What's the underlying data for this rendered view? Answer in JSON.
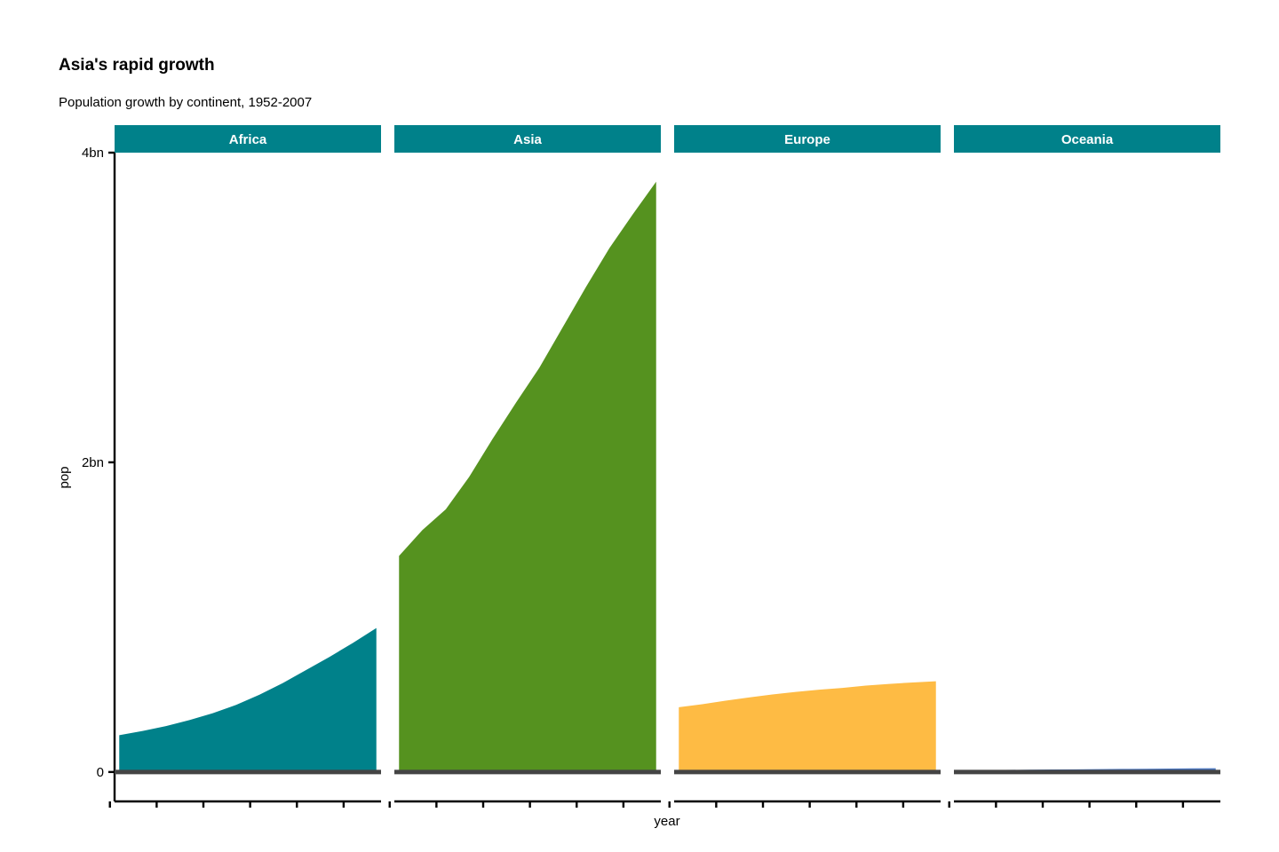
{
  "chart_data": {
    "type": "area",
    "title": "Asia's rapid growth",
    "subtitle": "Population growth by continent, 1952-2007",
    "xlabel": "year",
    "ylabel": "pop",
    "y_ticks": [
      {
        "value": 0,
        "label": "0"
      },
      {
        "value": 2000000000,
        "label": "2bn"
      },
      {
        "value": 4000000000,
        "label": "4bn"
      }
    ],
    "ylim": [
      -190000000,
      4000000000
    ],
    "xlim": [
      1951,
      2008
    ],
    "x_tick_values": [
      1950,
      1960,
      1970,
      1980,
      1990,
      2000
    ],
    "x": [
      1952,
      1957,
      1962,
      1967,
      1972,
      1977,
      1982,
      1987,
      1992,
      1997,
      2002,
      2007
    ],
    "series": [
      {
        "name": "Africa",
        "color": "#00818A",
        "values": [
          237640501,
          264837738,
          296516865,
          335289489,
          379879541,
          433061021,
          499348587,
          574834110,
          659081517,
          743832984,
          833723916,
          929539692
        ]
      },
      {
        "name": "Asia",
        "color": "#55921F",
        "values": [
          1395357352,
          1562780599,
          1696357182,
          1905662900,
          2150972248,
          2384513556,
          2610135582,
          2871220762,
          3133292191,
          3383285500,
          3601802203,
          3811953827
        ]
      },
      {
        "name": "Europe",
        "color": "#FEBB44",
        "values": [
          418120846,
          437890351,
          460355155,
          481178958,
          500635059,
          517164531,
          531266901,
          543094160,
          558142797,
          568944148,
          578223869,
          586098529
        ]
      },
      {
        "name": "Oceania",
        "color": "#4A75BE",
        "values": [
          10686006,
          11941976,
          13283518,
          14600414,
          16106305,
          17239000,
          18394850,
          19574415,
          20919651,
          22241430,
          23454829,
          24549947
        ]
      }
    ],
    "facets": [
      "Africa",
      "Asia",
      "Europe",
      "Oceania"
    ],
    "strip_color": "#00818A",
    "grid": false
  }
}
